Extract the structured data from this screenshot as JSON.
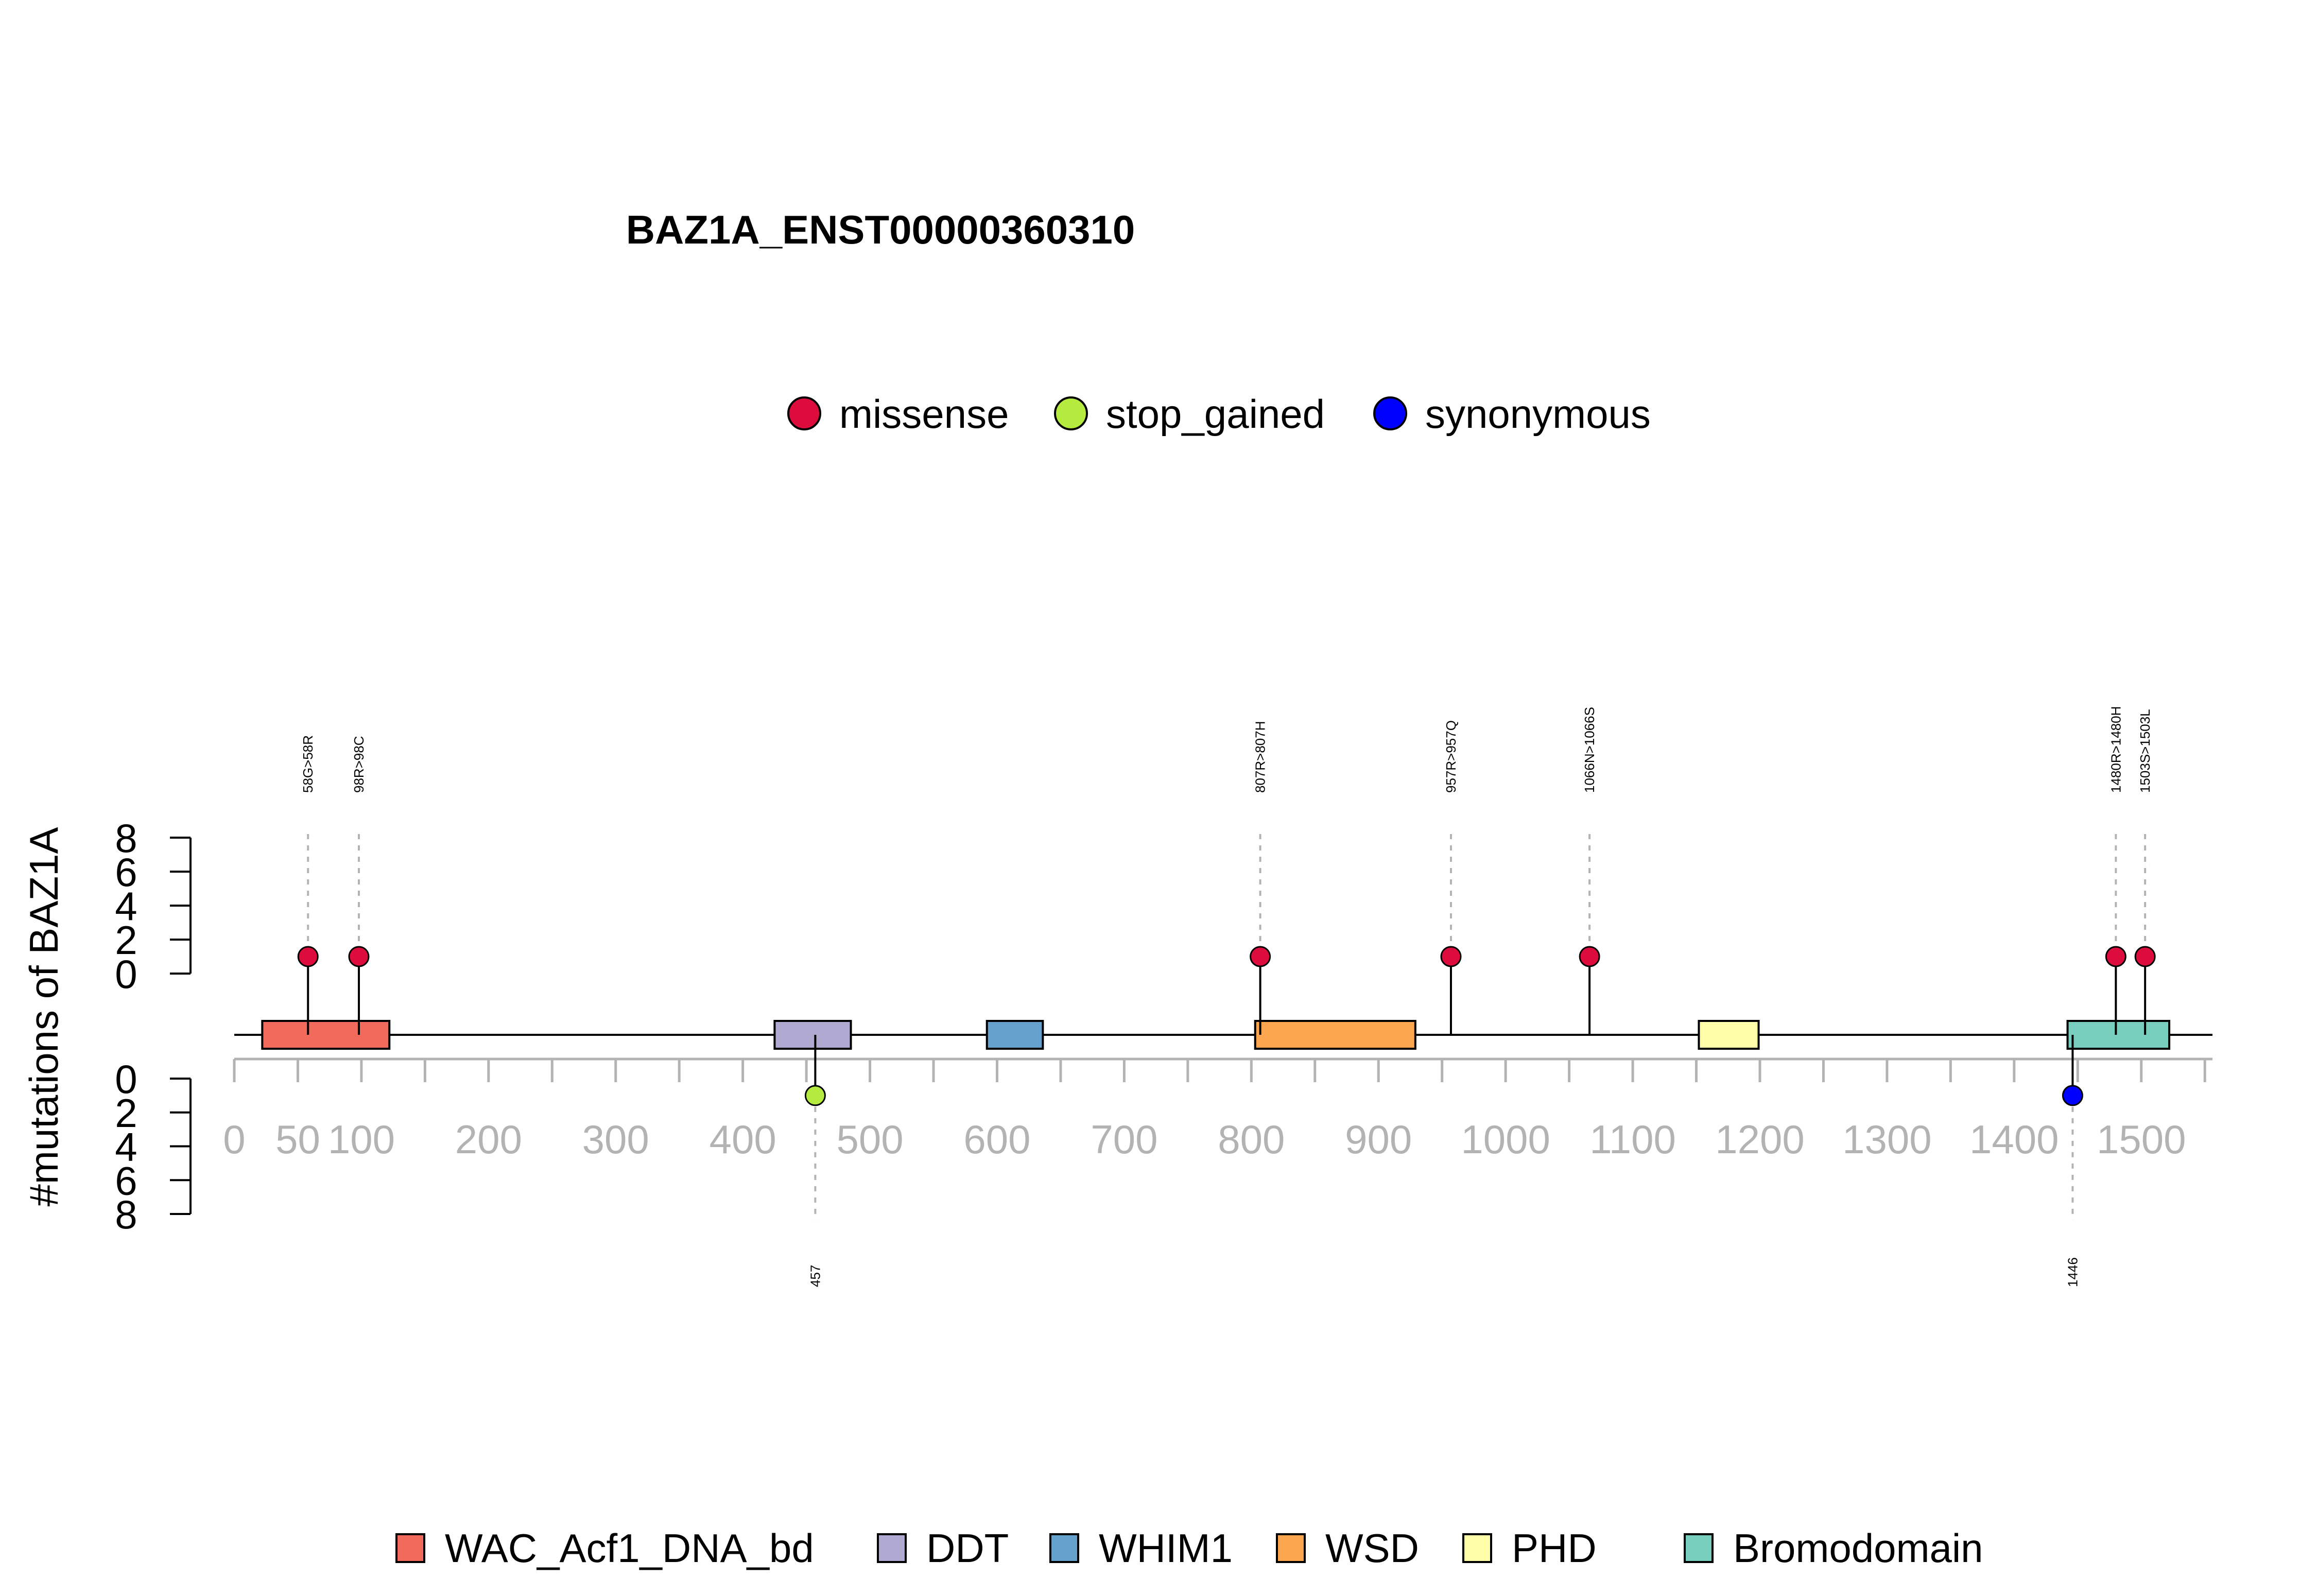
{
  "chart_data": {
    "type": "lollipop",
    "title": "BAZ1A_ENST00000360310",
    "ylabel": "#mutations of BAZ1A",
    "x_ticks": [
      0,
      50,
      100,
      200,
      300,
      400,
      500,
      600,
      700,
      800,
      900,
      1000,
      1100,
      1200,
      1300,
      1400,
      1500
    ],
    "xlim": [
      0,
      1556
    ],
    "y_ticks_top": [
      0,
      2,
      4,
      6,
      8
    ],
    "y_ticks_bottom": [
      0,
      2,
      4,
      6,
      8
    ],
    "ylim": [
      0,
      8
    ],
    "mutation_types": [
      {
        "name": "missense",
        "color": "#dc0d3c"
      },
      {
        "name": "stop_gained",
        "color": "#b5eb3e"
      },
      {
        "name": "synonymous",
        "color": "#0000ff"
      }
    ],
    "domains": [
      {
        "name": "WAC_Acf1_DNA_bd",
        "start": 22,
        "end": 122,
        "color": "#f26a5c"
      },
      {
        "name": "DDT",
        "start": 425,
        "end": 485,
        "color": "#b0a9d2"
      },
      {
        "name": "WHIM1",
        "start": 592,
        "end": 636,
        "color": "#66a0cc"
      },
      {
        "name": "WSD",
        "start": 803,
        "end": 929,
        "color": "#fca64f"
      },
      {
        "name": "PHD",
        "start": 1152,
        "end": 1199,
        "color": "#ffffa9"
      },
      {
        "name": "Bromodomain",
        "start": 1442,
        "end": 1522,
        "color": "#79cfbd"
      }
    ],
    "mutations_top": [
      {
        "position": 58,
        "label": "58G>58R",
        "type": "missense",
        "count": 1
      },
      {
        "position": 98,
        "label": "98R>98C",
        "type": "missense",
        "count": 1
      },
      {
        "position": 807,
        "label": "807R>807H",
        "type": "missense",
        "count": 1
      },
      {
        "position": 957,
        "label": "957R>957Q",
        "type": "missense",
        "count": 1
      },
      {
        "position": 1066,
        "label": "1066N>1066S",
        "type": "missense",
        "count": 1
      },
      {
        "position": 1480,
        "label": "1480R>1480H",
        "type": "missense",
        "count": 1
      },
      {
        "position": 1503,
        "label": "1503S>1503L",
        "type": "missense",
        "count": 1
      }
    ],
    "mutations_bottom": [
      {
        "position": 457,
        "label": "457",
        "type": "stop_gained",
        "count": 1
      },
      {
        "position": 1446,
        "label": "1446",
        "type": "synonymous",
        "count": 1
      }
    ]
  }
}
